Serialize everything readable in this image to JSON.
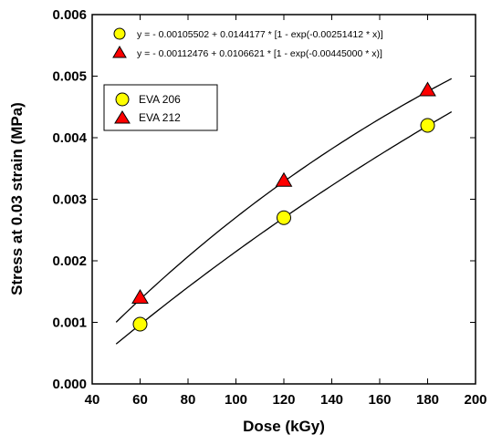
{
  "chart_data": {
    "type": "scatter",
    "xlabel": "Dose (kGy)",
    "ylabel": "Stress at 0.03 strain (MPa)",
    "xlim": [
      40,
      200
    ],
    "ylim": [
      0,
      0.006
    ],
    "x_ticks": [
      "40",
      "60",
      "80",
      "100",
      "120",
      "140",
      "160",
      "180",
      "200"
    ],
    "y_ticks": [
      "0.000",
      "0.001",
      "0.002",
      "0.003",
      "0.004",
      "0.005",
      "0.006"
    ],
    "grid": false,
    "legend_position": "upper-left",
    "series": [
      {
        "name": "EVA 206",
        "marker": "circle",
        "color": "#ffff00",
        "x": [
          60,
          120,
          180
        ],
        "y": [
          0.00097,
          0.0027,
          0.0042
        ],
        "fit": {
          "a": -0.00105502,
          "b": 0.0144177,
          "c": 0.00251412,
          "range": [
            50,
            190
          ]
        },
        "equation": "y = - 0.00105502 + 0.0144177 * [1 - exp(-0.00251412 * x)]"
      },
      {
        "name": "EVA 212",
        "marker": "triangle",
        "color": "#ff0000",
        "x": [
          60,
          120,
          180
        ],
        "y": [
          0.0014,
          0.0033,
          0.00477
        ],
        "fit": {
          "a": -0.00112476,
          "b": 0.0106621,
          "c": 0.00445,
          "range": [
            50,
            190
          ]
        },
        "equation": "y = - 0.00112476 + 0.0106621 * [1 - exp(-0.00445000 * x)]"
      }
    ]
  }
}
